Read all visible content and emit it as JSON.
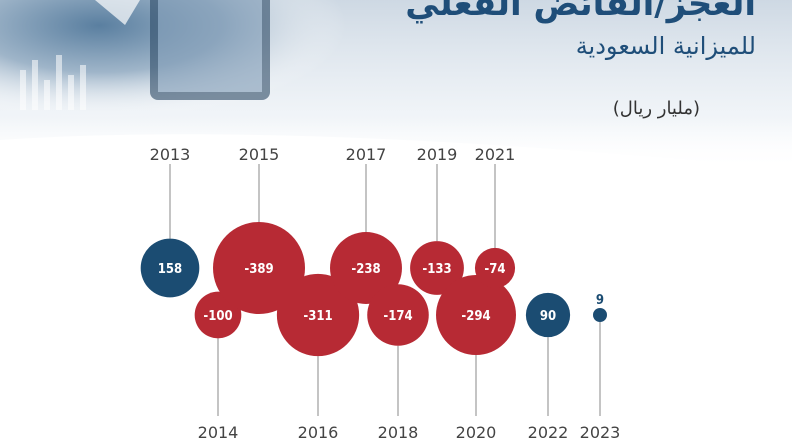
{
  "header": {
    "title": "العجز/الفائض الفعلي",
    "subtitle": "للميزانية السعودية",
    "unit": "(مليار ريال)"
  },
  "colors": {
    "deficit": "#b72a34",
    "surplus": "#1b4c72",
    "title": "#1f4e79",
    "line": "#aaaaaa",
    "year_text": "#444444"
  },
  "chart_data": {
    "type": "bubble",
    "title": "العجز/الفائض الفعلي",
    "subtitle": "للميزانية السعودية",
    "unit": "(مليار ريال)",
    "categories": [
      "2013",
      "2014",
      "2015",
      "2016",
      "2017",
      "2018",
      "2019",
      "2020",
      "2021",
      "2022",
      "2023"
    ],
    "labels": [
      "158",
      "-100",
      "-389",
      "-311",
      "-238",
      "-174",
      "-133",
      "-294",
      "-74",
      "90",
      "9"
    ],
    "values": [
      158,
      -100,
      -389,
      -311,
      -238,
      -174,
      -133,
      -294,
      -74,
      90,
      9
    ]
  }
}
